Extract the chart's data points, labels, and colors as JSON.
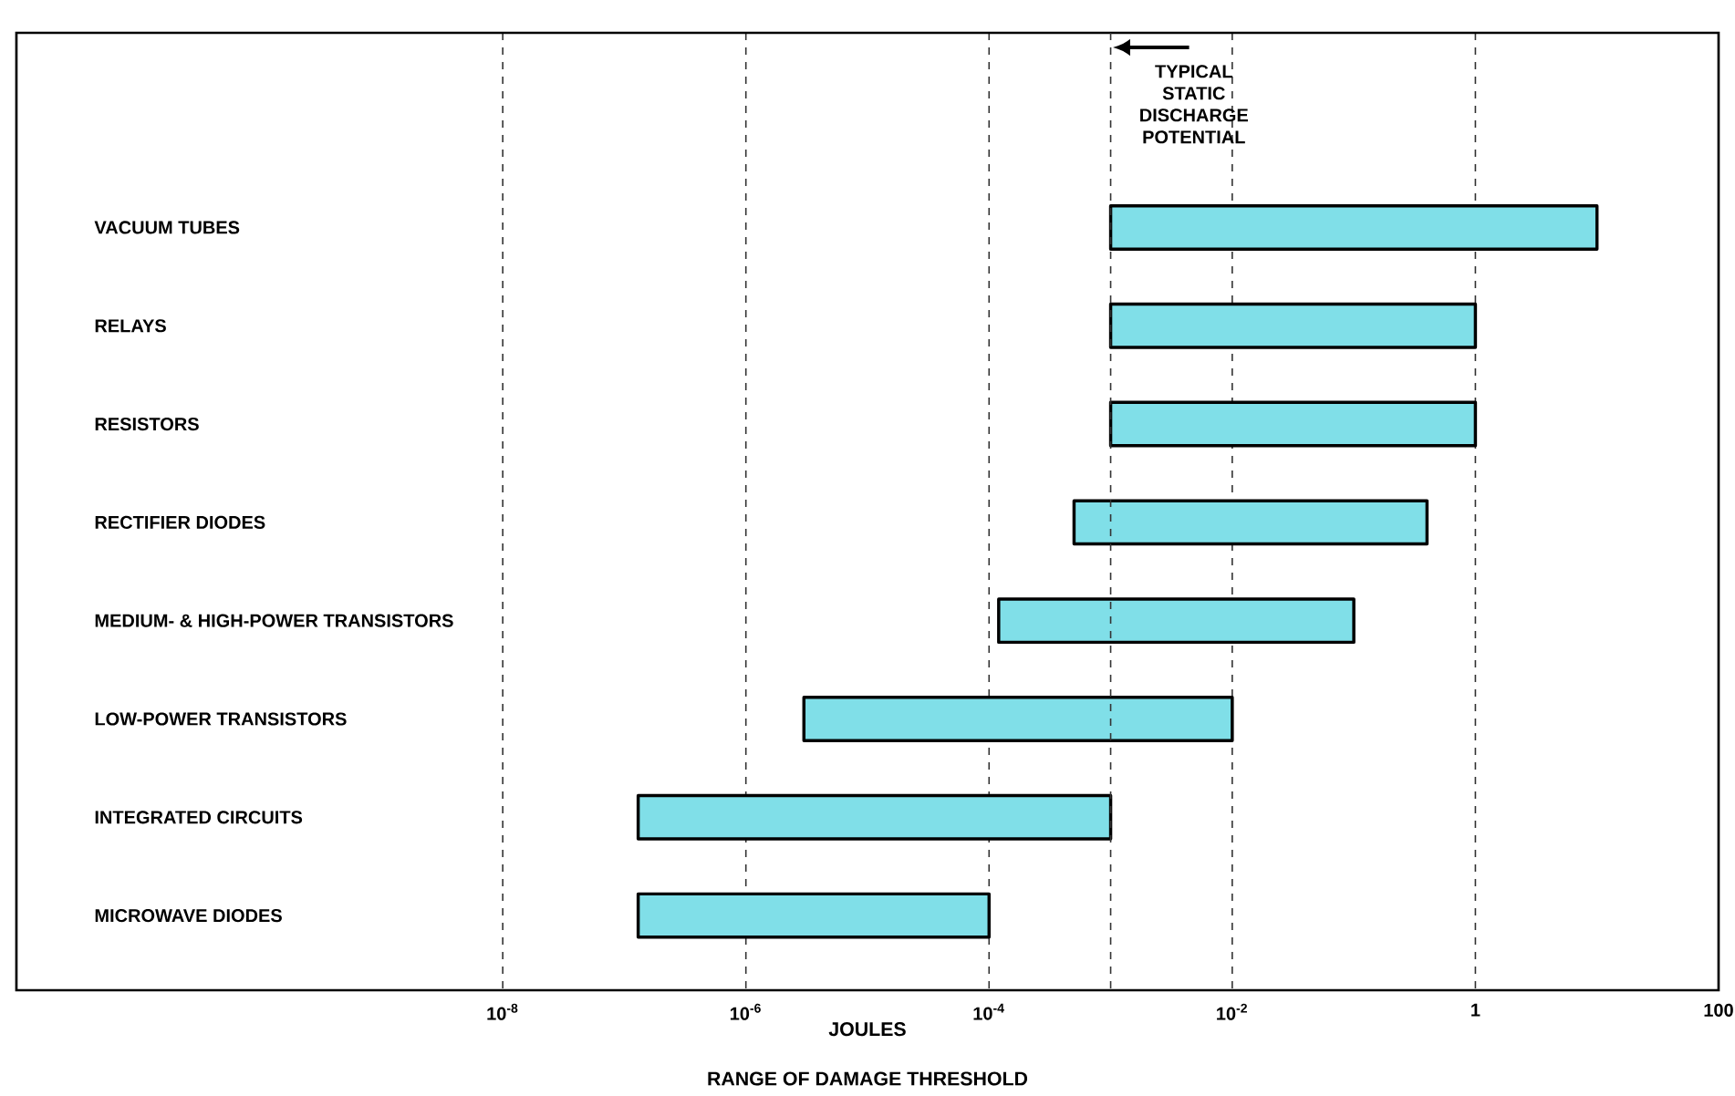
{
  "chart_data": {
    "type": "bar",
    "orientation": "horizontal",
    "title": "RANGE OF DAMAGE THRESHOLD",
    "xlabel": "JOULES",
    "categories": [
      "VACUUM TUBES",
      "RELAYS",
      "RESISTORS",
      "RECTIFIER DIODES",
      "MEDIUM- & HIGH-POWER TRANSISTORS",
      "LOW-POWER TRANSISTORS",
      "INTEGRATED CIRCUITS",
      "MICROWAVE DIODES"
    ],
    "base": [
      0.001,
      0.001,
      0.001,
      0.0005,
      0.00012,
      3e-06,
      1.3e-07,
      1.3e-07
    ],
    "values": [
      9.999,
      0.999,
      0.999,
      0.3995,
      0.09988,
      0.009997,
      0.00099987,
      9.987e-05
    ],
    "color": "#80dfe8",
    "log": "x",
    "xlim": [
      1e-12,
      100
    ],
    "xticks": [
      {
        "value": 1e-08,
        "label": "10$^{-8}$"
      },
      {
        "value": 1e-06,
        "label": "10$^{-6}$"
      },
      {
        "value": 0.0001,
        "label": "10$^{-4}$"
      },
      {
        "value": 0.01,
        "label": "10$^{-2}$"
      },
      1,
      100
    ],
    "grid": "x",
    "ref_lines": [
      {
        "axis": "x",
        "value": 0.001,
        "label": "TYPICAL STATIC DISCHARGE POTENTIAL",
        "line_style": "dashed"
      }
    ]
  }
}
